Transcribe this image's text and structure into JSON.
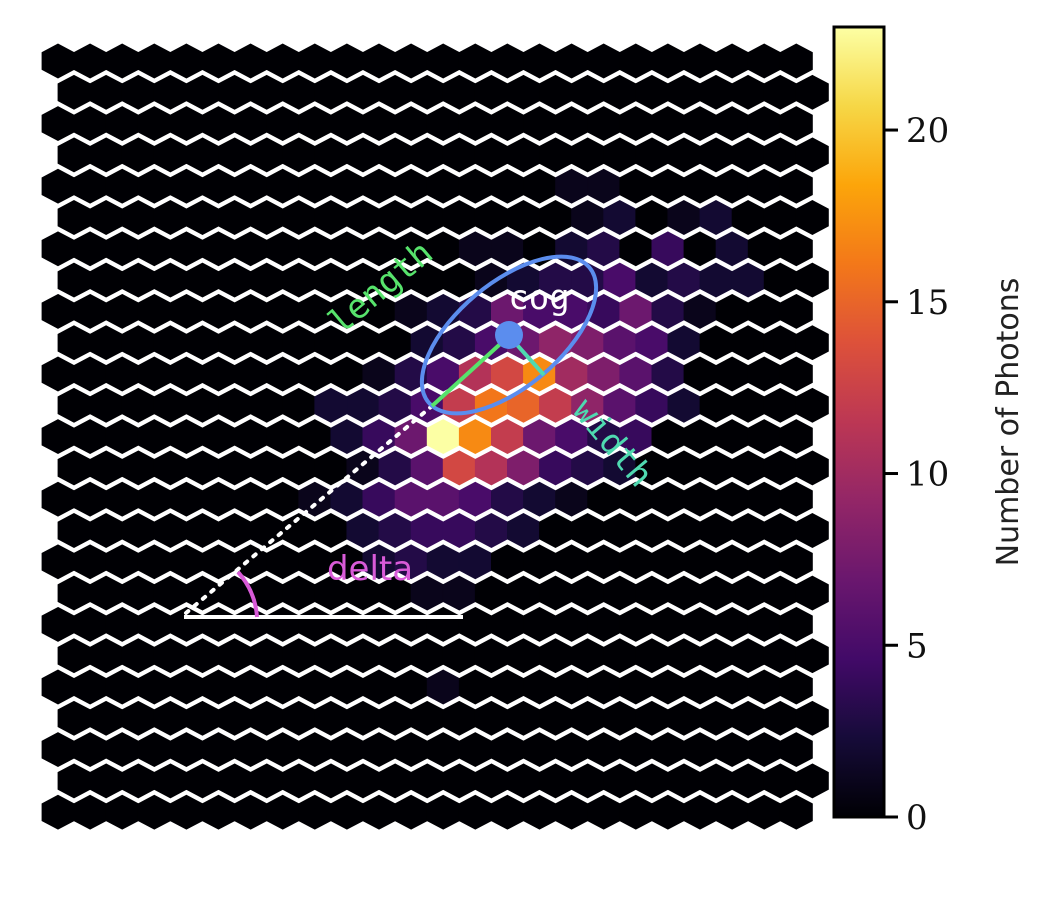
{
  "chart_data": {
    "type": "heatmap",
    "subtype": "hexbin",
    "title": "",
    "colormap": "inferno",
    "colorbar": {
      "label": "Number of Photons",
      "range": [
        0,
        23
      ],
      "ticks": [
        0,
        5,
        10,
        15,
        20
      ],
      "tick_labels": [
        "0",
        "5",
        "10",
        "15",
        "20"
      ]
    },
    "background_value": 0,
    "hex_cells": [
      {
        "col": 16,
        "row": 4,
        "value": 1
      },
      {
        "col": 17,
        "row": 4,
        "value": 1
      },
      {
        "col": 16,
        "row": 5,
        "value": 1
      },
      {
        "col": 17,
        "row": 5,
        "value": 2
      },
      {
        "col": 19,
        "row": 5,
        "value": 1
      },
      {
        "col": 20,
        "row": 5,
        "value": 2
      },
      {
        "col": 13,
        "row": 6,
        "value": 1
      },
      {
        "col": 14,
        "row": 6,
        "value": 1
      },
      {
        "col": 16,
        "row": 6,
        "value": 2
      },
      {
        "col": 17,
        "row": 6,
        "value": 3
      },
      {
        "col": 19,
        "row": 6,
        "value": 4
      },
      {
        "col": 21,
        "row": 6,
        "value": 2
      },
      {
        "col": 13,
        "row": 7,
        "value": 1
      },
      {
        "col": 14,
        "row": 7,
        "value": 2
      },
      {
        "col": 15,
        "row": 7,
        "value": 3
      },
      {
        "col": 16,
        "row": 7,
        "value": 3
      },
      {
        "col": 17,
        "row": 7,
        "value": 5
      },
      {
        "col": 18,
        "row": 7,
        "value": 2
      },
      {
        "col": 19,
        "row": 7,
        "value": 3
      },
      {
        "col": 20,
        "row": 7,
        "value": 2
      },
      {
        "col": 21,
        "row": 7,
        "value": 2
      },
      {
        "col": 11,
        "row": 8,
        "value": 1
      },
      {
        "col": 12,
        "row": 8,
        "value": 2
      },
      {
        "col": 13,
        "row": 8,
        "value": 3
      },
      {
        "col": 14,
        "row": 8,
        "value": 7
      },
      {
        "col": 15,
        "row": 8,
        "value": 5
      },
      {
        "col": 16,
        "row": 8,
        "value": 5
      },
      {
        "col": 17,
        "row": 8,
        "value": 4
      },
      {
        "col": 18,
        "row": 8,
        "value": 7
      },
      {
        "col": 19,
        "row": 8,
        "value": 3
      },
      {
        "col": 20,
        "row": 8,
        "value": 1
      },
      {
        "col": 11,
        "row": 9,
        "value": 2
      },
      {
        "col": 12,
        "row": 9,
        "value": 3
      },
      {
        "col": 13,
        "row": 9,
        "value": 5
      },
      {
        "col": 14,
        "row": 9,
        "value": 7
      },
      {
        "col": 15,
        "row": 9,
        "value": 9
      },
      {
        "col": 16,
        "row": 9,
        "value": 8
      },
      {
        "col": 17,
        "row": 9,
        "value": 6
      },
      {
        "col": 18,
        "row": 9,
        "value": 5
      },
      {
        "col": 19,
        "row": 9,
        "value": 2
      },
      {
        "col": 10,
        "row": 10,
        "value": 1
      },
      {
        "col": 11,
        "row": 10,
        "value": 3
      },
      {
        "col": 12,
        "row": 10,
        "value": 5
      },
      {
        "col": 13,
        "row": 10,
        "value": 11
      },
      {
        "col": 14,
        "row": 10,
        "value": 13
      },
      {
        "col": 15,
        "row": 10,
        "value": 17
      },
      {
        "col": 16,
        "row": 10,
        "value": 10
      },
      {
        "col": 17,
        "row": 10,
        "value": 8
      },
      {
        "col": 18,
        "row": 10,
        "value": 6
      },
      {
        "col": 19,
        "row": 10,
        "value": 3
      },
      {
        "col": 8,
        "row": 11,
        "value": 2
      },
      {
        "col": 9,
        "row": 11,
        "value": 2
      },
      {
        "col": 10,
        "row": 11,
        "value": 3
      },
      {
        "col": 11,
        "row": 11,
        "value": 5
      },
      {
        "col": 12,
        "row": 11,
        "value": 12
      },
      {
        "col": 13,
        "row": 11,
        "value": 16
      },
      {
        "col": 14,
        "row": 11,
        "value": 15
      },
      {
        "col": 15,
        "row": 11,
        "value": 12
      },
      {
        "col": 16,
        "row": 11,
        "value": 9
      },
      {
        "col": 17,
        "row": 11,
        "value": 6
      },
      {
        "col": 18,
        "row": 11,
        "value": 4
      },
      {
        "col": 19,
        "row": 11,
        "value": 2
      },
      {
        "col": 9,
        "row": 12,
        "value": 2
      },
      {
        "col": 10,
        "row": 12,
        "value": 4
      },
      {
        "col": 11,
        "row": 12,
        "value": 7
      },
      {
        "col": 12,
        "row": 12,
        "value": 23
      },
      {
        "col": 13,
        "row": 12,
        "value": 17
      },
      {
        "col": 14,
        "row": 12,
        "value": 12
      },
      {
        "col": 15,
        "row": 12,
        "value": 7
      },
      {
        "col": 16,
        "row": 12,
        "value": 5
      },
      {
        "col": 17,
        "row": 12,
        "value": 3
      },
      {
        "col": 18,
        "row": 12,
        "value": 4
      },
      {
        "col": 9,
        "row": 13,
        "value": 1
      },
      {
        "col": 10,
        "row": 13,
        "value": 3
      },
      {
        "col": 11,
        "row": 13,
        "value": 6
      },
      {
        "col": 12,
        "row": 13,
        "value": 13
      },
      {
        "col": 13,
        "row": 13,
        "value": 11
      },
      {
        "col": 14,
        "row": 13,
        "value": 8
      },
      {
        "col": 15,
        "row": 13,
        "value": 4
      },
      {
        "col": 16,
        "row": 13,
        "value": 3
      },
      {
        "col": 17,
        "row": 13,
        "value": 2
      },
      {
        "col": 8,
        "row": 14,
        "value": 1
      },
      {
        "col": 9,
        "row": 14,
        "value": 2
      },
      {
        "col": 10,
        "row": 14,
        "value": 4
      },
      {
        "col": 11,
        "row": 14,
        "value": 6
      },
      {
        "col": 12,
        "row": 14,
        "value": 6
      },
      {
        "col": 13,
        "row": 14,
        "value": 5
      },
      {
        "col": 14,
        "row": 14,
        "value": 3
      },
      {
        "col": 15,
        "row": 14,
        "value": 2
      },
      {
        "col": 16,
        "row": 14,
        "value": 1
      },
      {
        "col": 9,
        "row": 15,
        "value": 2
      },
      {
        "col": 10,
        "row": 15,
        "value": 3
      },
      {
        "col": 11,
        "row": 15,
        "value": 4
      },
      {
        "col": 12,
        "row": 15,
        "value": 4
      },
      {
        "col": 13,
        "row": 15,
        "value": 3
      },
      {
        "col": 14,
        "row": 15,
        "value": 2
      },
      {
        "col": 10,
        "row": 16,
        "value": 2
      },
      {
        "col": 11,
        "row": 16,
        "value": 3
      },
      {
        "col": 12,
        "row": 16,
        "value": 2
      },
      {
        "col": 13,
        "row": 16,
        "value": 2
      },
      {
        "col": 11,
        "row": 17,
        "value": 1
      },
      {
        "col": 12,
        "row": 17,
        "value": 1
      },
      {
        "col": 12,
        "row": 20,
        "value": 1
      }
    ],
    "annotations": {
      "length": {
        "label": "length",
        "color": "#57e36c"
      },
      "width": {
        "label": "width",
        "color": "#4fd9b0"
      },
      "cog": {
        "label": "cog",
        "color": "#ffffff",
        "marker_color": "#5b8dee"
      },
      "delta": {
        "label": "delta",
        "color": "#d85ad8"
      },
      "ellipse_color": "#5b8dee",
      "baseline_color": "#ffffff"
    }
  }
}
